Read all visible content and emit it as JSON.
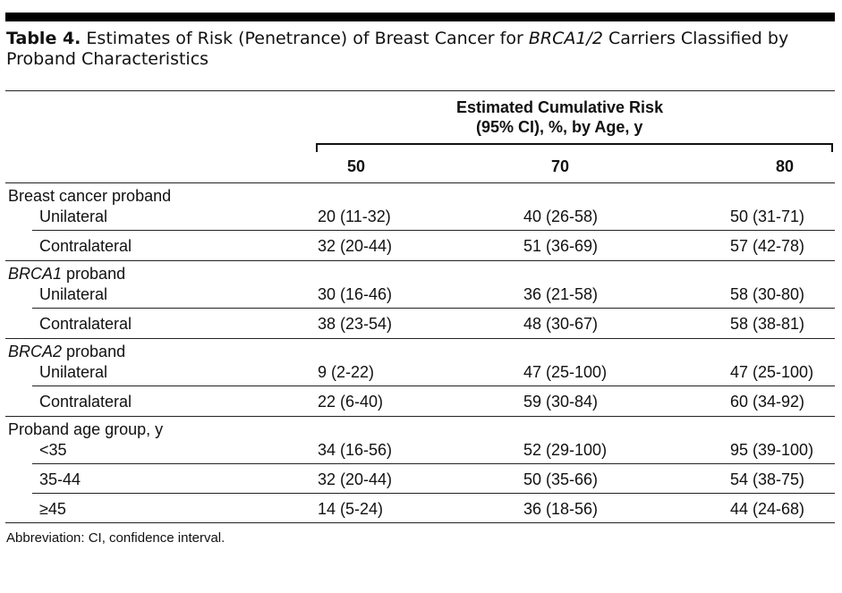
{
  "title": {
    "label": "Table 4.",
    "text_before": " Estimates of Risk (Penetrance) of Breast Cancer for ",
    "text_italic": "BRCA1/2",
    "text_after": " Carriers Classified by",
    "line2": "Proband Characteristics"
  },
  "header": {
    "group_line1": "Estimated Cumulative Risk",
    "group_line2": "(95% CI), %, by Age, y",
    "cols": [
      "50",
      "70",
      "80"
    ]
  },
  "sections": [
    {
      "heading_pre": "",
      "heading_italic": "",
      "heading_post": "Breast cancer proband",
      "rows": [
        {
          "label": "Unilateral",
          "values": [
            "20 (11-32)",
            "40 (26-58)",
            "50 (31-71)"
          ]
        },
        {
          "label": "Contralateral",
          "values": [
            "32 (20-44)",
            "51 (36-69)",
            "57 (42-78)"
          ]
        }
      ]
    },
    {
      "heading_pre": "",
      "heading_italic": "BRCA1",
      "heading_post": " proband",
      "rows": [
        {
          "label": "Unilateral",
          "values": [
            "30 (16-46)",
            "36 (21-58)",
            "58 (30-80)"
          ]
        },
        {
          "label": "Contralateral",
          "values": [
            "38 (23-54)",
            "48 (30-67)",
            "58 (38-81)"
          ]
        }
      ]
    },
    {
      "heading_pre": "",
      "heading_italic": "BRCA2",
      "heading_post": " proband",
      "rows": [
        {
          "label": "Unilateral",
          "values": [
            "9 (2-22)",
            "47 (25-100)",
            "47 (25-100)"
          ]
        },
        {
          "label": "Contralateral",
          "values": [
            "22 (6-40)",
            "59 (30-84)",
            "60 (34-92)"
          ]
        }
      ]
    },
    {
      "heading_pre": "",
      "heading_italic": "",
      "heading_post": "Proband age group, y",
      "rows": [
        {
          "label": "<35",
          "values": [
            "34 (16-56)",
            "52 (29-100)",
            "95 (39-100)"
          ]
        },
        {
          "label": "35-44",
          "values": [
            "32 (20-44)",
            "50 (35-66)",
            "54 (38-75)"
          ]
        },
        {
          "label": "≥45",
          "values": [
            "14 (5-24)",
            "36 (18-56)",
            "44 (24-68)"
          ]
        }
      ]
    }
  ],
  "footnote": "Abbreviation: CI, confidence interval."
}
